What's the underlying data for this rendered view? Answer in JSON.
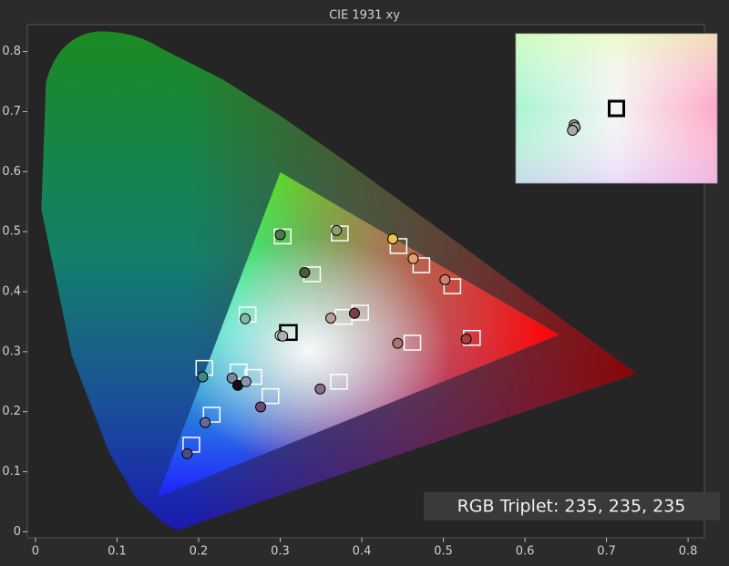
{
  "chart_data": {
    "type": "scatter",
    "title": "CIE 1931 xy",
    "annotation": "RGB Triplet: 235, 235, 235",
    "xlim": [
      -0.01,
      0.82
    ],
    "ylim": [
      -0.01,
      0.845
    ],
    "xticks": [
      0,
      0.1,
      0.2,
      0.3,
      0.4,
      0.5,
      0.6,
      0.7,
      0.8
    ],
    "yticks": [
      0,
      0.1,
      0.2,
      0.3,
      0.4,
      0.5,
      0.6,
      0.7,
      0.8
    ],
    "series": [
      {
        "marker": "square",
        "colors": [
          "#ffffff",
          "#ffffff",
          "#ffffff",
          "#ffffff",
          "#ffffff",
          "#ffffff",
          "#ffffff",
          "#000000",
          "#ffffff",
          "#ffffff",
          "#ffffff",
          "#ffffff",
          "#ffffff",
          "#ffffff",
          "#ffffff",
          "#ffffff",
          "#ffffff",
          "#ffffff",
          "#ffffff"
        ],
        "x": [
          0.207,
          0.249,
          0.267,
          0.288,
          0.216,
          0.191,
          0.26,
          0.31,
          0.303,
          0.373,
          0.339,
          0.378,
          0.398,
          0.445,
          0.473,
          0.511,
          0.462,
          0.535,
          0.372
        ],
        "y": [
          0.273,
          0.267,
          0.258,
          0.226,
          0.195,
          0.145,
          0.362,
          0.332,
          0.492,
          0.497,
          0.429,
          0.358,
          0.365,
          0.476,
          0.444,
          0.409,
          0.315,
          0.323,
          0.25
        ]
      },
      {
        "marker": "circle",
        "colors": [
          "#3a8a8a",
          "#7a85a0",
          "#111111",
          "#8a94b0",
          "#6a4a7a",
          "#6a6a9a",
          "#4a4a8a",
          "#7fb8a8",
          "#d8d8d8",
          "#b0b0b0",
          "#4a7a4a",
          "#8aa070",
          "#4a5a3a",
          "#c0a090",
          "#7a4040",
          "#f0c050",
          "#e0a070",
          "#d08070",
          "#b07070",
          "#a04040",
          "#8a6a90"
        ],
        "x": [
          0.205,
          0.241,
          0.248,
          0.258,
          0.276,
          0.208,
          0.186,
          0.257,
          0.3,
          0.303,
          0.3,
          0.369,
          0.33,
          0.362,
          0.391,
          0.438,
          0.463,
          0.502,
          0.444,
          0.528,
          0.349
        ],
        "y": [
          0.258,
          0.256,
          0.244,
          0.25,
          0.208,
          0.182,
          0.13,
          0.355,
          0.327,
          0.326,
          0.495,
          0.502,
          0.432,
          0.356,
          0.364,
          0.488,
          0.455,
          0.42,
          0.314,
          0.321,
          0.238
        ]
      }
    ],
    "inset": {
      "xlim": [
        0.2937,
        0.3317
      ],
      "ylim": [
        0.314,
        0.344
      ],
      "square": {
        "x": [
          0.3127
        ],
        "y": [
          0.329
        ],
        "color": "#000000"
      },
      "circles": {
        "x": [
          0.3047,
          0.3049,
          0.3044
        ],
        "y": [
          0.3257,
          0.3252,
          0.3246
        ],
        "color": "#a8a8a8"
      }
    }
  }
}
